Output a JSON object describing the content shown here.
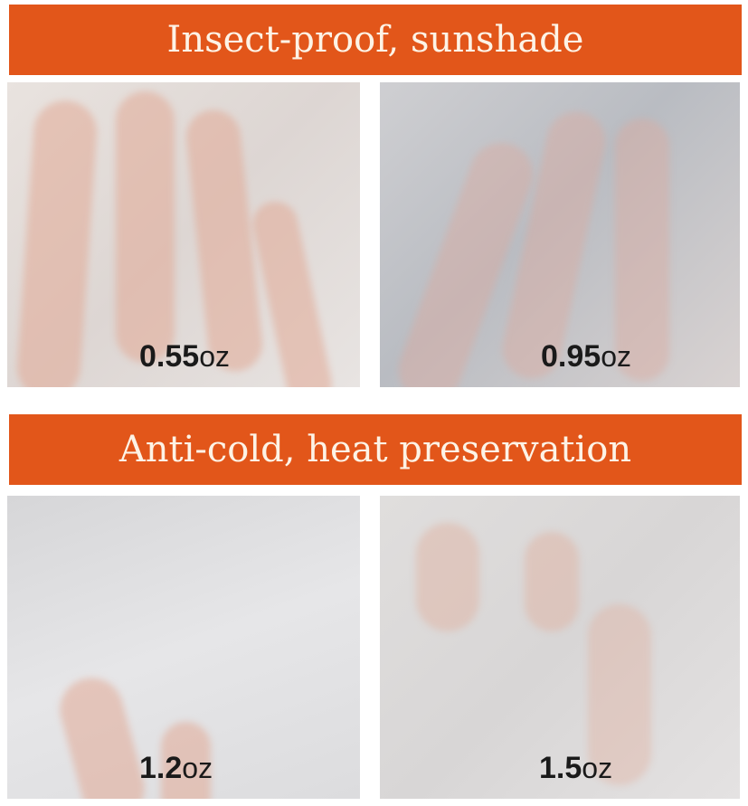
{
  "sections": [
    {
      "title": "Insect-proof, sunshade",
      "samples": [
        {
          "value": "0.55",
          "unit": "oz"
        },
        {
          "value": "0.95",
          "unit": "oz"
        }
      ]
    },
    {
      "title": "Anti-cold, heat preservation",
      "samples": [
        {
          "value": "1.2",
          "unit": "oz"
        },
        {
          "value": "1.5",
          "unit": "oz"
        }
      ]
    }
  ],
  "colors": {
    "banner": "#e2561a",
    "banner_text": "#fdf3e6"
  }
}
